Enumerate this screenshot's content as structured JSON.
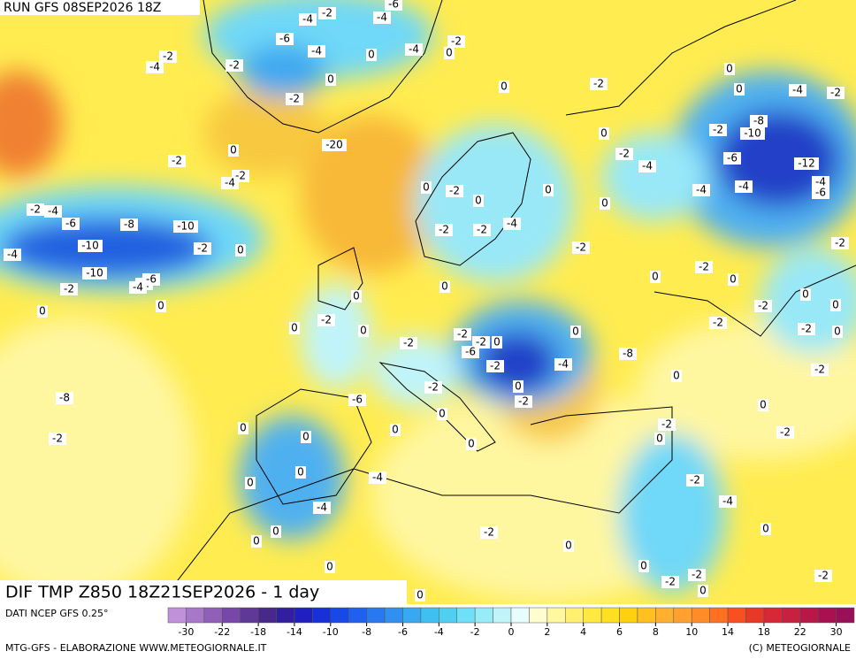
{
  "header": {
    "run": "RUN GFS 08SEP2026 18Z",
    "product": "DIF TMP Z850 18Z21SEP2026 - 1 day"
  },
  "contour_labels": [
    -4,
    -2,
    -4,
    -6,
    -6,
    -4,
    -4,
    -2,
    -2,
    -4,
    -2,
    0,
    0,
    0,
    0,
    -2,
    0,
    -2,
    0,
    -4,
    -2,
    -8,
    -2,
    -10,
    0,
    -20,
    0,
    -2,
    -2,
    -4,
    -6,
    -12,
    -4,
    -4,
    -6,
    -2,
    -4,
    0,
    -2,
    0,
    -4,
    -2,
    -4,
    -6,
    -8,
    -10,
    0,
    0,
    -4,
    -2,
    -2,
    -2,
    0,
    -4,
    -10,
    -2,
    -2,
    -10,
    -2,
    -6,
    -4,
    -2,
    0,
    -2,
    0,
    0,
    0,
    0,
    0,
    -2,
    0,
    -2,
    0,
    0,
    0,
    -2,
    0,
    -2,
    0,
    -2,
    -2,
    0,
    -2,
    -6,
    -2,
    -4,
    -8,
    -2,
    0,
    -2,
    0,
    -2,
    -8,
    -6,
    0,
    0,
    0,
    0,
    0,
    -2,
    -2,
    0,
    0,
    -2,
    0,
    -4,
    0,
    -2,
    -4,
    -4,
    0,
    -2,
    0,
    0,
    0,
    0,
    0,
    -2,
    -2,
    -2,
    0,
    0,
    0
  ],
  "legend": {
    "source": "DATI NCEP GFS 0.25°",
    "ticks": [
      -30,
      -22,
      -18,
      -14,
      -10,
      -8,
      -6,
      -4,
      -2,
      0,
      2,
      4,
      6,
      8,
      10,
      14,
      18,
      22,
      30
    ],
    "colors": [
      "#c090d8",
      "#a878c8",
      "#9060b8",
      "#7848a8",
      "#603898",
      "#482888",
      "#3020a0",
      "#2020c0",
      "#1830d8",
      "#1848e8",
      "#2060f0",
      "#2878f0",
      "#3090f0",
      "#38a8f0",
      "#40c0f0",
      "#50d0f0",
      "#70e0f8",
      "#98ecf8",
      "#c0f4fa",
      "#e8fcfc",
      "#fffcd0",
      "#fff8a0",
      "#fff070",
      "#ffe840",
      "#ffe020",
      "#ffd010",
      "#ffc020",
      "#ffb030",
      "#ffa030",
      "#ff8c28",
      "#ff7020",
      "#f85020",
      "#e83828",
      "#d82838",
      "#c82040",
      "#b81848",
      "#a81050",
      "#981058"
    ],
    "footer_left": "MTG-GFS - ELABORAZIONE WWW.METEOGIORNALE.IT",
    "footer_right": "(C) METEOGIORNALE"
  }
}
